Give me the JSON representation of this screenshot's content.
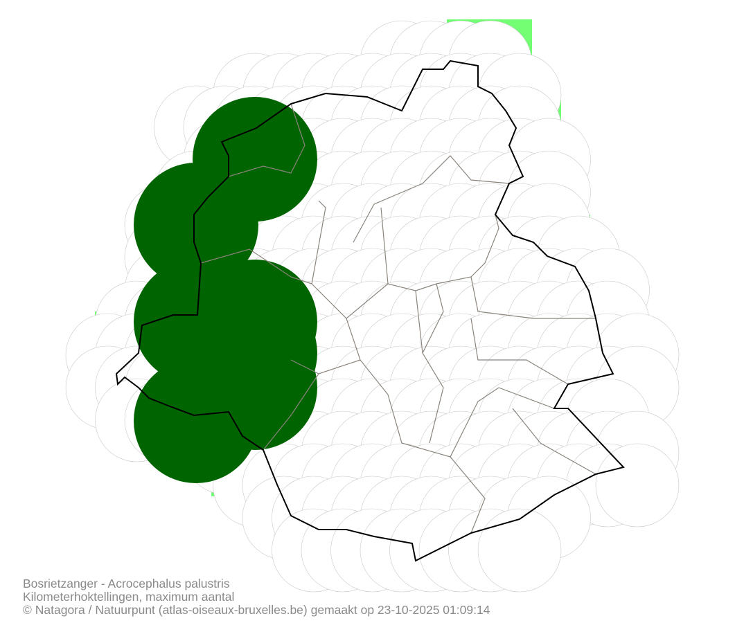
{
  "map": {
    "species": "Bosrietzanger - Acrocephalus palustris",
    "method": "Kilometerhoktellingen, maximum aantal",
    "credit": "© Natagora / Natuurpunt (atlas-oiseaux-bruxelles.be) gemaakt op 23-10-2025 01:09:14",
    "colors": {
      "surveyed_cell": "#73ff73",
      "presence_circle": "#006400",
      "grid_circle_stroke": "#c8c8c8",
      "region_boundary": "#000000",
      "municipality_boundary": "#8a847c",
      "caption_text": "#8a8a8a"
    }
  }
}
